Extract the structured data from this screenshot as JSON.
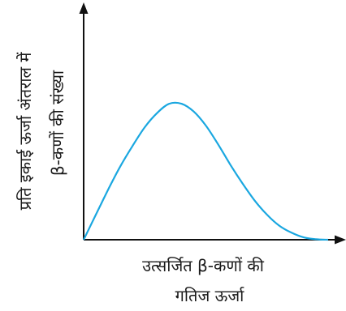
{
  "chart_data": {
    "type": "line",
    "title": "",
    "xlabel_line1": "उत्सर्जित β-कणों की",
    "xlabel_line2": "गतिज ऊर्जा",
    "ylabel_line1": "प्रति इकाई ऊर्जा अंतराल में",
    "ylabel_line2": "β-कणों की संख्या",
    "grid": false,
    "legend": false,
    "xlim": [
      0,
      1
    ],
    "ylim": [
      0,
      1
    ],
    "series": [
      {
        "color": "#1aa7e0",
        "x": [
          0,
          0.05,
          0.1,
          0.15,
          0.2,
          0.25,
          0.3,
          0.35,
          0.4,
          0.45,
          0.5,
          0.55,
          0.6,
          0.65,
          0.7,
          0.75,
          0.8,
          0.85,
          0.9,
          0.95,
          1.0
        ],
        "y": [
          0,
          0.16,
          0.32,
          0.47,
          0.6,
          0.72,
          0.81,
          0.87,
          0.87,
          0.82,
          0.73,
          0.61,
          0.48,
          0.36,
          0.25,
          0.16,
          0.09,
          0.045,
          0.015,
          0.003,
          0
        ]
      }
    ]
  },
  "colors": {
    "axis": "#111111",
    "curve": "#1aa7e0"
  }
}
